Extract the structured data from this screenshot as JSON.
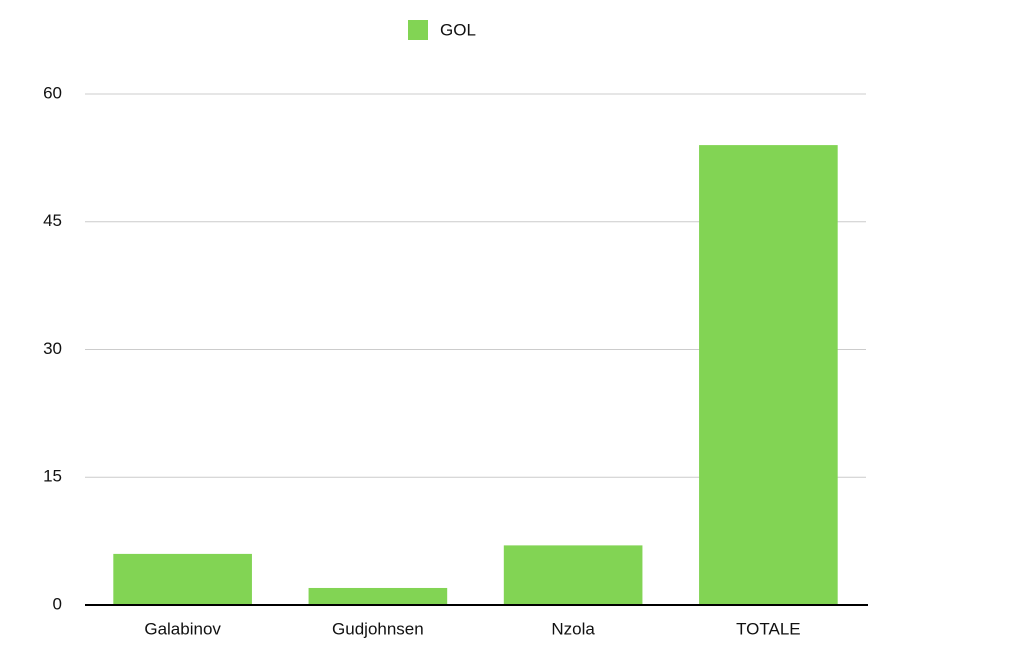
{
  "chart_data": {
    "type": "bar",
    "categories": [
      "Galabinov",
      "Gudjohnsen",
      "Nzola",
      "TOTALE"
    ],
    "series": [
      {
        "name": "GOL",
        "color": "#82d454",
        "values": [
          6,
          2,
          7,
          54
        ]
      }
    ],
    "ylim": [
      0,
      60
    ],
    "yticks": [
      0,
      15,
      30,
      45,
      60
    ],
    "grid": true,
    "legend": "top"
  }
}
